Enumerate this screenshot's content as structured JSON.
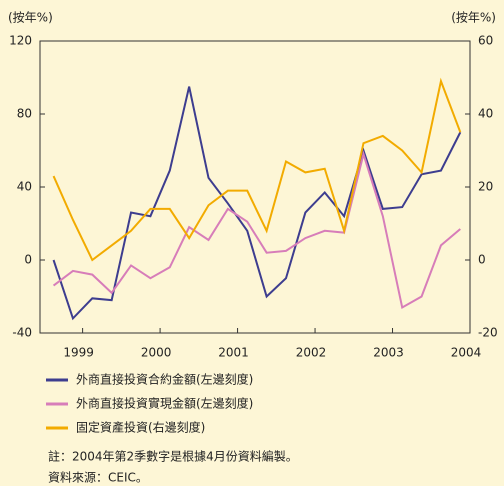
{
  "chart_data": {
    "type": "line",
    "ylabel": "(按年%)",
    "y2label": "(按年%)",
    "x": [
      1999.125,
      1999.375,
      1999.625,
      1999.875,
      2000.125,
      2000.375,
      2000.625,
      2000.875,
      2001.125,
      2001.375,
      2001.625,
      2001.875,
      2002.125,
      2002.375,
      2002.625,
      2002.875,
      2003.125,
      2003.375,
      2003.625,
      2003.875,
      2004.125,
      2004.375
    ],
    "xlim": [
      1998.95,
      2004.5
    ],
    "xticks": [
      {
        "value": 1999.5,
        "label": "1999"
      },
      {
        "value": 2000.5,
        "label": "2000"
      },
      {
        "value": 2001.5,
        "label": "2001"
      },
      {
        "value": 2002.5,
        "label": "2002"
      },
      {
        "value": 2003.5,
        "label": "2003"
      },
      {
        "value": 2004.5,
        "label": "2004"
      }
    ],
    "ylim": [
      -40,
      120
    ],
    "yticks": [
      -40,
      0,
      40,
      80,
      120
    ],
    "y2lim": [
      -20,
      60
    ],
    "y2ticks": [
      -20,
      0,
      20,
      40,
      60
    ],
    "series": [
      {
        "name": "外商直接投資合約金額(左邊刻度)",
        "color": "#3d3d8f",
        "values": [
          0,
          -32,
          -21,
          -22,
          26,
          24,
          49,
          95,
          45,
          31,
          16,
          -20,
          -10,
          26,
          37,
          24,
          60,
          28,
          29,
          47,
          49,
          70
        ]
      },
      {
        "name": "外商直接投資實現金額(左邊刻度)",
        "color": "#d77db9",
        "values": [
          -14,
          -6,
          -8,
          -18,
          -3,
          -10,
          -4,
          18,
          11,
          28,
          21,
          4,
          5,
          12,
          16,
          15,
          58,
          24,
          -26,
          -20,
          8,
          17
        ]
      },
      {
        "name": "固定資產投資(右邊刻度)",
        "color": "#f2ab00",
        "axis": "y2",
        "values": [
          23,
          11,
          0,
          4,
          8,
          14,
          14,
          6,
          15,
          19,
          19,
          8,
          27,
          24,
          25,
          8,
          32,
          34,
          30,
          24,
          49,
          35
        ]
      }
    ],
    "annotations": [
      "註：2004年第2季數字是根據4月份資料編製。",
      "資料來源：CEIC。"
    ]
  }
}
